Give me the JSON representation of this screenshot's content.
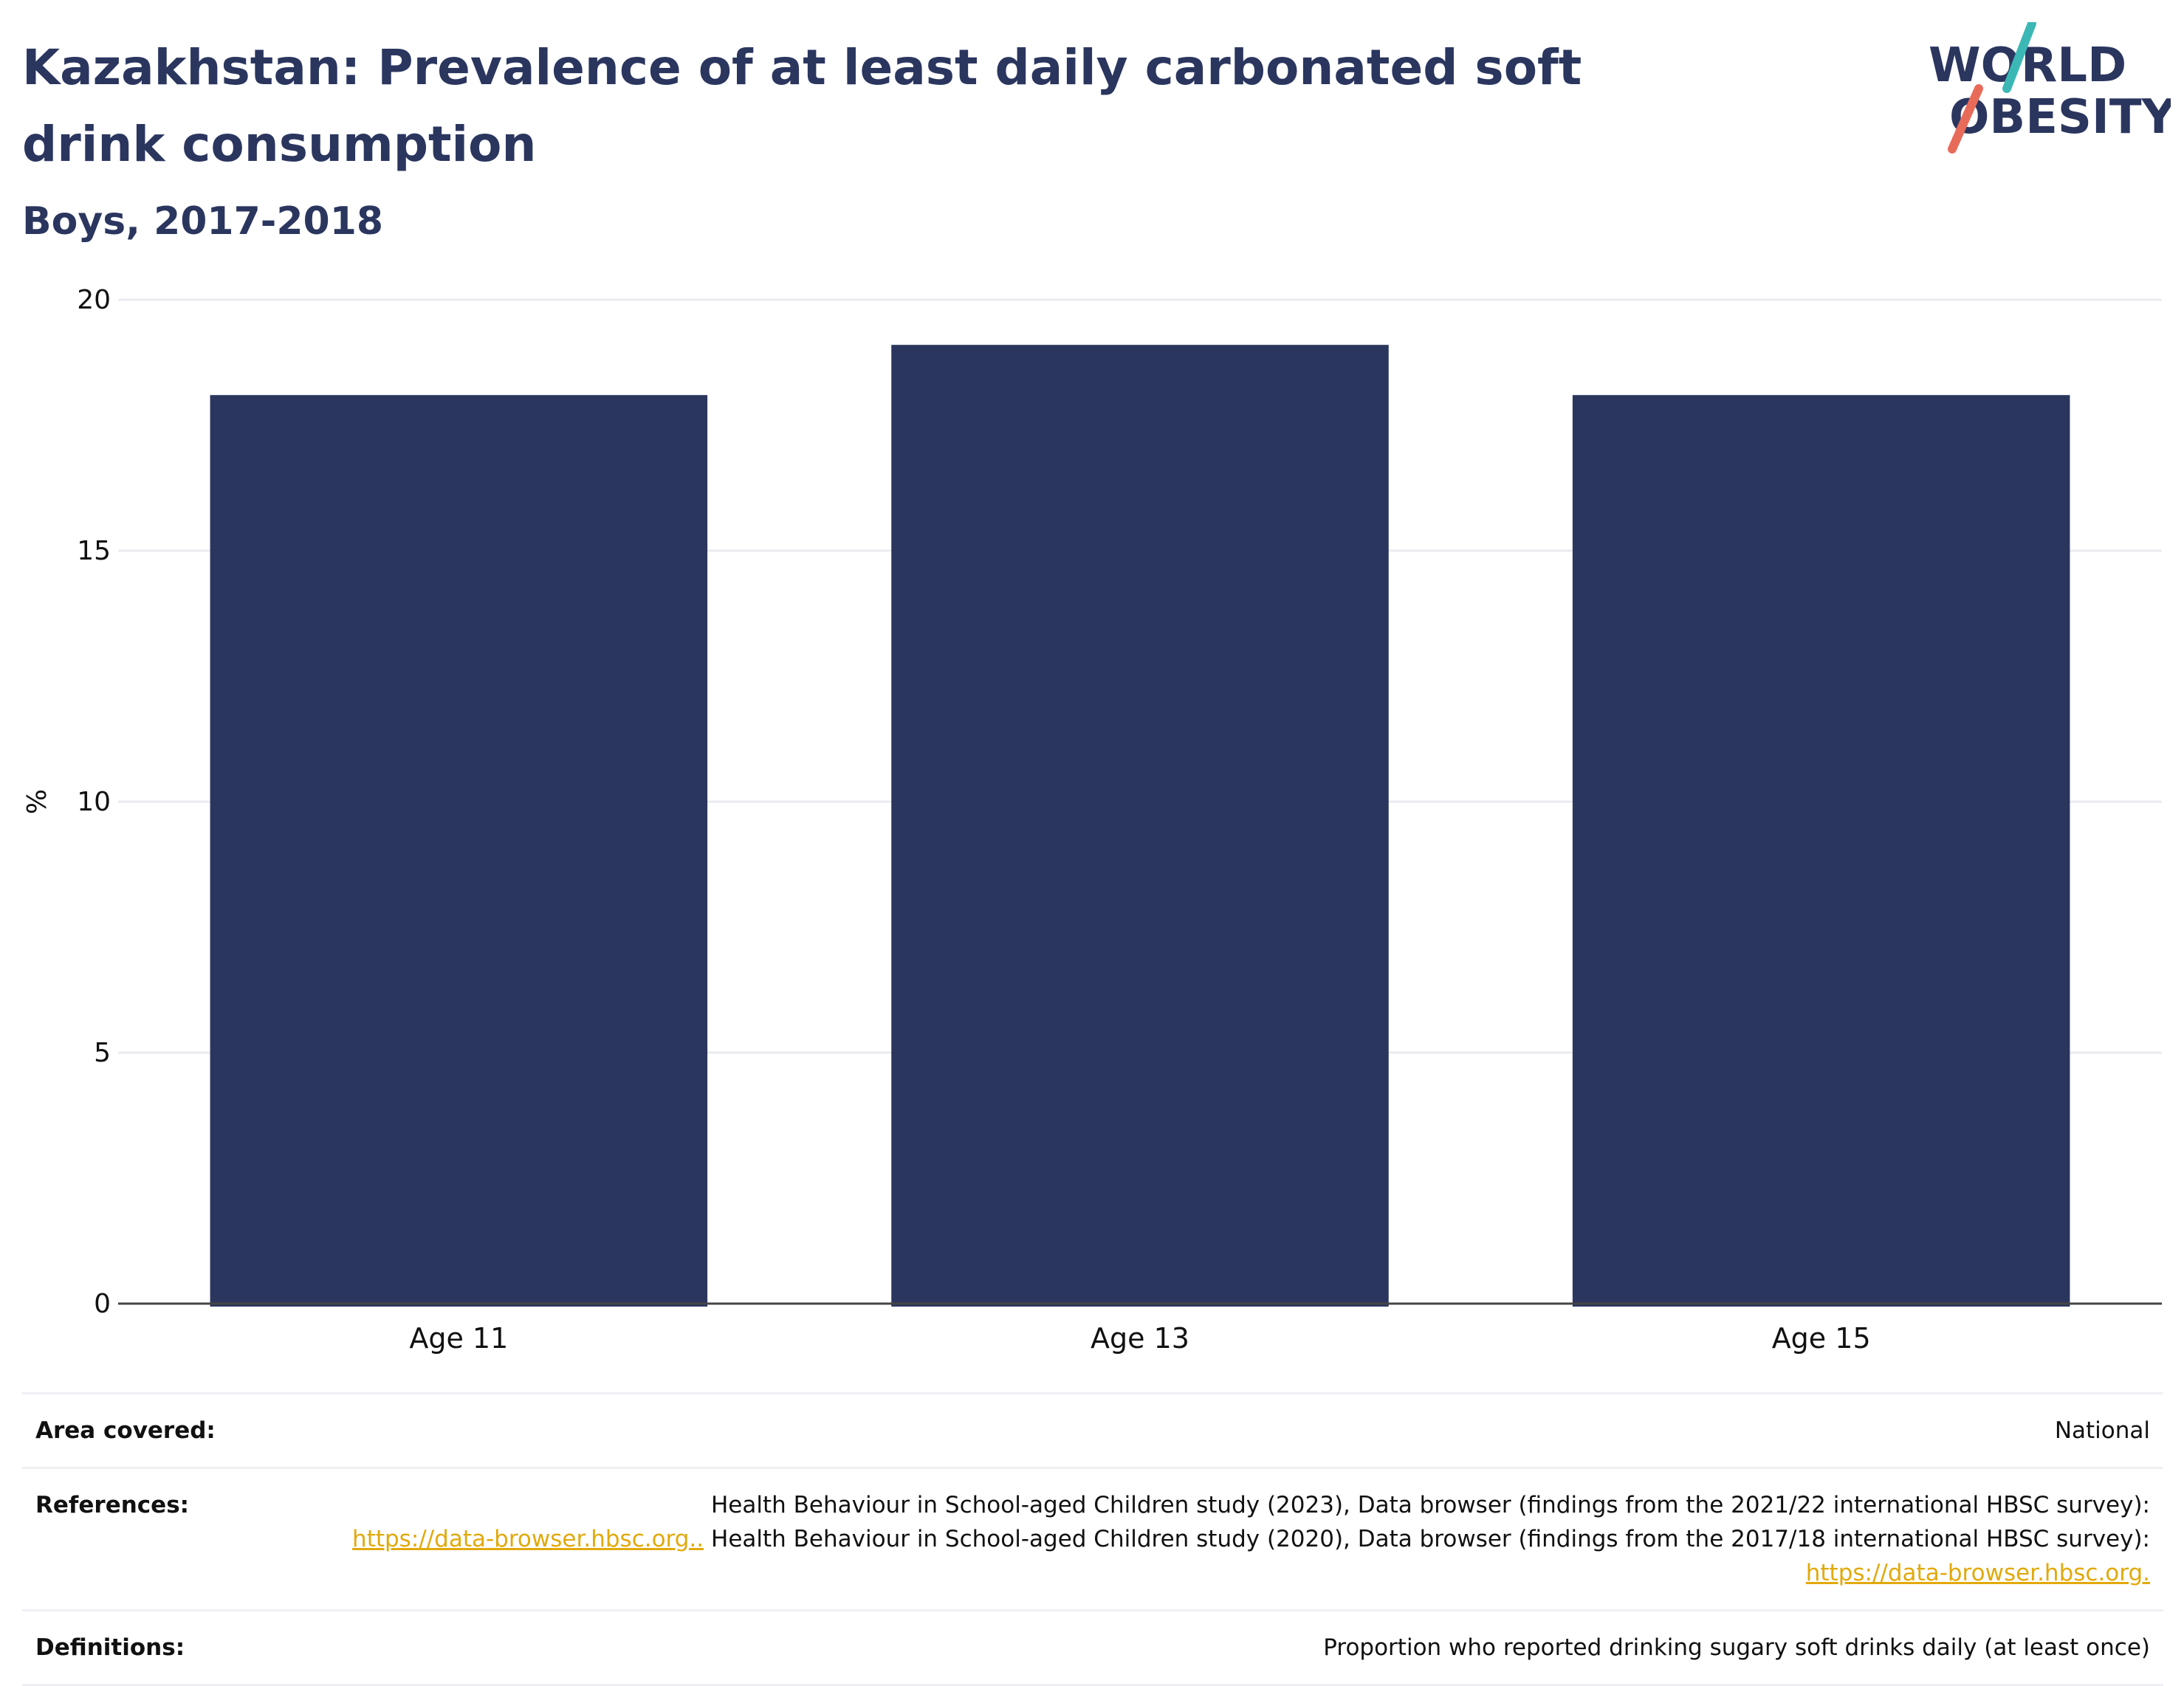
{
  "header": {
    "title": "Kazakhstan: Prevalence of at least daily carbonated soft drink consumption",
    "subtitle": "Boys, 2017-2018"
  },
  "logo": {
    "line1": "WORLD",
    "line2": "OBESITY",
    "colors": {
      "text": "#2b365f",
      "slash_top": "#3bb8b5",
      "slash_bottom": "#e86b5a"
    }
  },
  "chart_data": {
    "type": "bar",
    "categories": [
      "Age 11",
      "Age 13",
      "Age 15"
    ],
    "values": [
      18.1,
      19.1,
      18.1
    ],
    "ylabel": "%",
    "ylim": [
      0,
      20
    ],
    "yticks": [
      0,
      5,
      10,
      15,
      20
    ],
    "grid": true,
    "bar_color": "#2b365f"
  },
  "meta": {
    "area": {
      "label": "Area covered:",
      "value": "National"
    },
    "references": {
      "label": "References:",
      "part1": "Health Behaviour in School-aged Children study (2023), Data browser (findings from the 2021/22 international HBSC survey):",
      "link1": "https://data-browser.hbsc.org..",
      "part2": " Health Behaviour in School-aged Children study (2020), Data browser (findings from the 2017/18 international HBSC survey): ",
      "link2": "https://data-browser.hbsc.org."
    },
    "definitions": {
      "label": "Definitions:",
      "value": "Proportion who reported drinking sugary soft drinks daily (at least once)"
    }
  }
}
